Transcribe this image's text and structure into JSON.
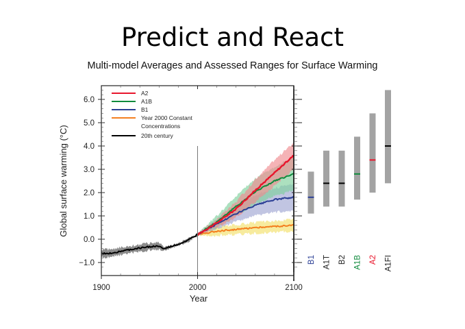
{
  "slide": {
    "title": "Predict and React"
  },
  "chart_data": {
    "type": "line",
    "title": "Multi-model Averages and Assessed Ranges for Surface Warming",
    "xlabel": "Year",
    "ylabel": "Global surface warming (°C)",
    "xlim": [
      1900,
      2100
    ],
    "ylim": [
      -1.2,
      6.8
    ],
    "x_ticks": [
      {
        "value": 1900,
        "label": "1900"
      },
      {
        "value": 2000,
        "label": "2000"
      },
      {
        "value": 2100,
        "label": "2100"
      }
    ],
    "y_ticks": [
      {
        "value": 6.0,
        "label": "6.0"
      },
      {
        "value": 5.0,
        "label": "5.0"
      },
      {
        "value": 4.0,
        "label": "4.0"
      },
      {
        "value": 3.0,
        "label": "3.0"
      },
      {
        "value": 2.0,
        "label": "2.0"
      },
      {
        "value": 1.0,
        "label": "1.0"
      },
      {
        "value": 0.0,
        "label": "0.0"
      },
      {
        "value": -1.0,
        "label": "−1.0"
      }
    ],
    "grid": false,
    "legend_position": "top-left",
    "annotations": [
      {
        "type": "vertical-line",
        "x": 2000
      }
    ],
    "series": [
      {
        "name": "A2",
        "color": "#e8152b",
        "band_color": "#f08a8f",
        "x": [
          2000,
          2020,
          2040,
          2060,
          2080,
          2100
        ],
        "y": [
          0.2,
          0.7,
          1.3,
          2.1,
          2.85,
          3.6
        ],
        "lower": [
          0.15,
          0.5,
          0.95,
          1.6,
          2.3,
          3.0
        ],
        "upper": [
          0.25,
          0.85,
          1.6,
          2.55,
          3.4,
          4.15
        ]
      },
      {
        "name": "A1B",
        "color": "#0f8a3c",
        "band_color": "#7fcf9d",
        "x": [
          2000,
          2020,
          2040,
          2060,
          2080,
          2100
        ],
        "y": [
          0.2,
          0.75,
          1.4,
          2.05,
          2.5,
          2.8
        ],
        "lower": [
          0.15,
          0.5,
          1.0,
          1.5,
          1.85,
          2.1
        ],
        "upper": [
          0.25,
          1.0,
          1.85,
          2.6,
          3.1,
          3.5
        ]
      },
      {
        "name": "B1",
        "color": "#2b3f95",
        "band_color": "#9fa6d2",
        "x": [
          2000,
          2020,
          2040,
          2060,
          2080,
          2100
        ],
        "y": [
          0.2,
          0.65,
          1.1,
          1.45,
          1.7,
          1.8
        ],
        "lower": [
          0.15,
          0.45,
          0.75,
          1.0,
          1.15,
          1.25
        ],
        "upper": [
          0.25,
          0.85,
          1.45,
          1.9,
          2.2,
          2.35
        ]
      },
      {
        "name": "Year 2000 Constant Concentrations",
        "color": "#f47f1f",
        "band_color": "#f2e06a",
        "x": [
          2000,
          2020,
          2040,
          2060,
          2080,
          2100
        ],
        "y": [
          0.2,
          0.35,
          0.42,
          0.5,
          0.55,
          0.6
        ],
        "lower": [
          0.15,
          0.15,
          0.2,
          0.25,
          0.3,
          0.35
        ],
        "upper": [
          0.25,
          0.55,
          0.62,
          0.72,
          0.78,
          0.85
        ]
      },
      {
        "name": "20th century",
        "color": "#000000",
        "band_color": "#8c8c8c",
        "x": [
          1900,
          1910,
          1920,
          1930,
          1940,
          1950,
          1960,
          1965,
          1970,
          1980,
          1990,
          2000
        ],
        "y": [
          -0.62,
          -0.6,
          -0.52,
          -0.45,
          -0.38,
          -0.32,
          -0.3,
          -0.42,
          -0.35,
          -0.22,
          -0.05,
          0.2
        ],
        "lower": [
          -0.78,
          -0.76,
          -0.68,
          -0.6,
          -0.54,
          -0.48,
          -0.45,
          -0.52,
          -0.42,
          -0.28,
          -0.1,
          0.15
        ],
        "upper": [
          -0.45,
          -0.43,
          -0.35,
          -0.29,
          -0.22,
          -0.16,
          -0.13,
          -0.32,
          -0.28,
          -0.16,
          0.0,
          0.25
        ]
      }
    ],
    "range_bars": [
      {
        "scenario": "B1",
        "low": 1.1,
        "high": 2.9,
        "best": 1.8,
        "label_color": "#2b3f95",
        "best_color": "#2b3f95"
      },
      {
        "scenario": "A1T",
        "low": 1.4,
        "high": 3.8,
        "best": 2.4,
        "label_color": "#222222",
        "best_color": "#000000"
      },
      {
        "scenario": "B2",
        "low": 1.4,
        "high": 3.8,
        "best": 2.4,
        "label_color": "#222222",
        "best_color": "#000000"
      },
      {
        "scenario": "A1B",
        "low": 1.7,
        "high": 4.4,
        "best": 2.8,
        "label_color": "#0f8a3c",
        "best_color": "#0f8a3c"
      },
      {
        "scenario": "A2",
        "low": 2.0,
        "high": 5.4,
        "best": 3.4,
        "label_color": "#e8152b",
        "best_color": "#e8152b"
      },
      {
        "scenario": "A1FI",
        "low": 2.4,
        "high": 6.4,
        "best": 4.0,
        "label_color": "#222222",
        "best_color": "#000000"
      }
    ],
    "range_bar_color": "#a3a3a3",
    "legend": [
      {
        "label": "A2",
        "color": "#e8152b"
      },
      {
        "label": "A1B",
        "color": "#0f8a3c"
      },
      {
        "label": "B1",
        "color": "#2b3f95"
      },
      {
        "label": "Year 2000 Constant",
        "label2": "Concentrations",
        "color": "#f47f1f"
      },
      {
        "label": "20th century",
        "color": "#000000"
      }
    ]
  }
}
